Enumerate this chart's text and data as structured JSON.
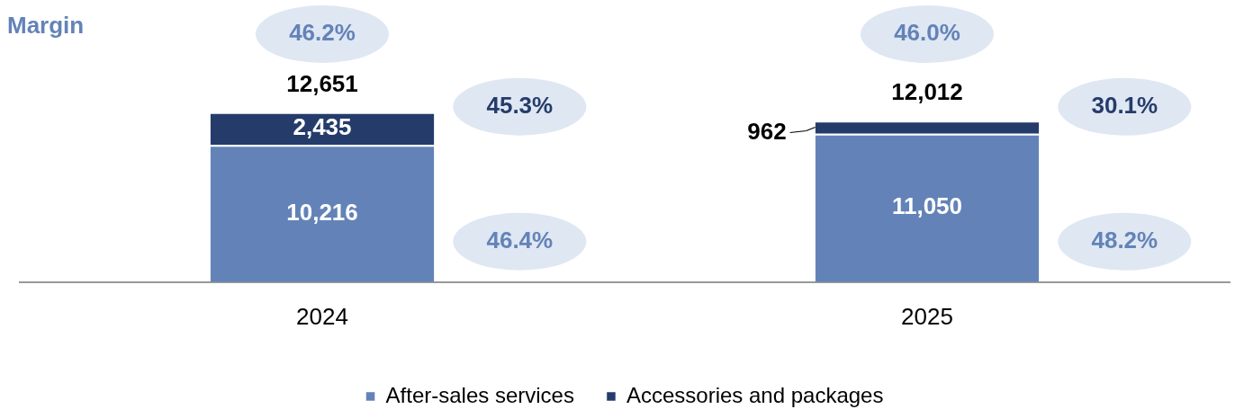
{
  "chart_data": {
    "type": "bar",
    "title": "Margin",
    "stacked": true,
    "categories": [
      "2024",
      "2025"
    ],
    "series": [
      {
        "name": "After-sales services",
        "color": "#6383b8",
        "values": [
          10216,
          11050
        ],
        "value_labels": [
          "10,216",
          "11,050"
        ]
      },
      {
        "name": "Accessories and packages",
        "color": "#253c6b",
        "values": [
          2435,
          962
        ],
        "value_labels": [
          "2,435",
          "962"
        ]
      }
    ],
    "totals": [
      "12,651",
      "12,012"
    ],
    "legend": "bottom",
    "grid": false,
    "annotations": [
      "46.2%",
      "45.3%",
      "46.4%",
      "46.0%",
      "30.1%",
      "48.2%"
    ]
  }
}
